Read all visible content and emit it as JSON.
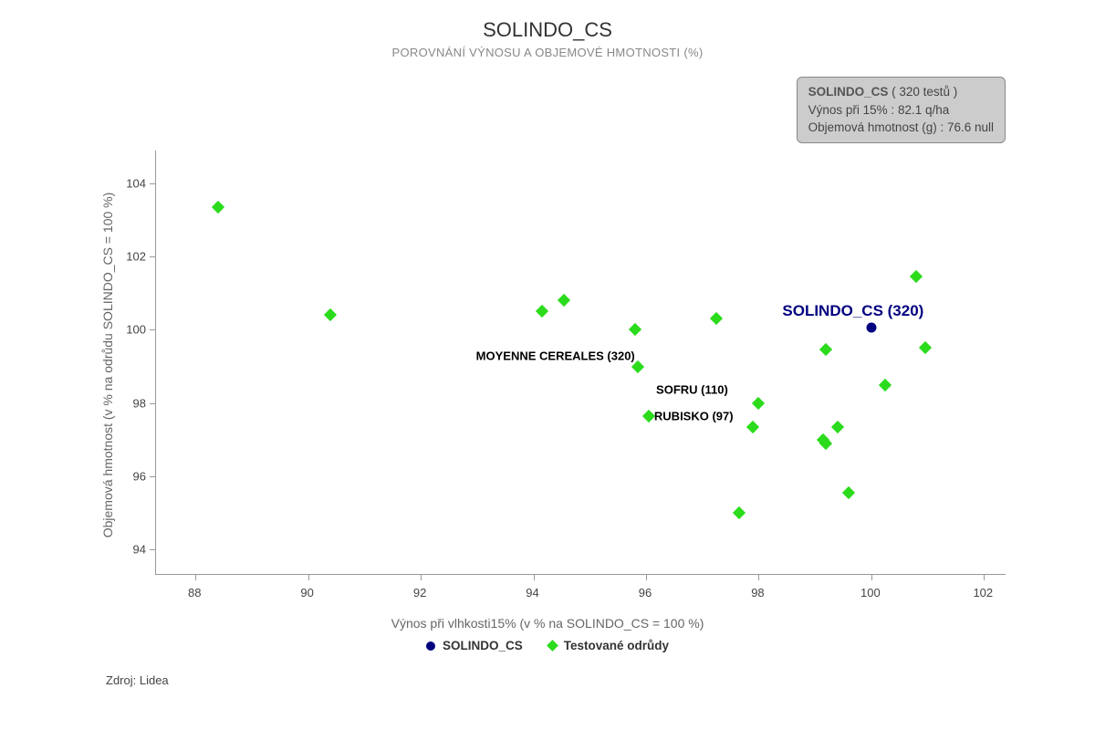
{
  "title": "SOLINDO_CS",
  "subtitle": "POROVNÁNÍ VÝNOSU A OBJEMOVÉ HMOTNOSTI (%)",
  "info_box": {
    "title_part": "SOLINDO_CS",
    "tests_part": " ( 320 testů )",
    "line2": "Výnos při 15% : 82.1 q/ha",
    "line3": "Objemová hmotnost (g) : 76.6 null"
  },
  "chart": {
    "type": "scatter",
    "background_color": "#ffffff",
    "axis_color": "#999999",
    "tick_label_color": "#444444",
    "xlabel": "Výnos při vlhkosti15% (v % na SOLINDO_CS = 100 %)",
    "ylabel": "Objemová hmotnost (v % na odrůdu SOLINDO_CS = 100 %)",
    "axis_label_color": "#666666",
    "axis_label_fontsize": 14,
    "tick_fontsize": 13,
    "xlim": [
      87.3,
      102.4
    ],
    "ylim": [
      93.3,
      104.9
    ],
    "xticks": [
      88,
      90,
      92,
      94,
      96,
      98,
      100,
      102
    ],
    "yticks": [
      94,
      96,
      98,
      100,
      102,
      104
    ],
    "series": {
      "tested": {
        "marker": "diamond",
        "color": "#2bdb1c",
        "size": 10,
        "points": [
          {
            "x": 88.4,
            "y": 103.35
          },
          {
            "x": 90.4,
            "y": 100.4
          },
          {
            "x": 94.15,
            "y": 100.5
          },
          {
            "x": 94.55,
            "y": 100.8
          },
          {
            "x": 95.8,
            "y": 100.0
          },
          {
            "x": 95.85,
            "y": 99.0,
            "label": "MOYENNE CEREALES (320)",
            "label_dx": -90,
            "label_dy": -12
          },
          {
            "x": 96.05,
            "y": 97.65
          },
          {
            "x": 97.25,
            "y": 100.3
          },
          {
            "x": 97.65,
            "y": 95.0
          },
          {
            "x": 97.9,
            "y": 97.35,
            "label": "RUBISKO (97)",
            "label_dx": -65,
            "label_dy": -12
          },
          {
            "x": 98.0,
            "y": 98.0,
            "label": "SOFRU (110)",
            "label_dx": -73,
            "label_dy": -15
          },
          {
            "x": 99.15,
            "y": 97.0
          },
          {
            "x": 99.2,
            "y": 96.9
          },
          {
            "x": 99.2,
            "y": 99.45
          },
          {
            "x": 99.4,
            "y": 97.35
          },
          {
            "x": 99.6,
            "y": 95.55
          },
          {
            "x": 100.25,
            "y": 98.5
          },
          {
            "x": 100.8,
            "y": 101.45
          },
          {
            "x": 100.95,
            "y": 99.5
          }
        ]
      },
      "main": {
        "marker": "circle",
        "color": "#000080",
        "size": 11,
        "points": [
          {
            "x": 100.0,
            "y": 100.05,
            "label": "SOLINDO_CS (320)",
            "label_dx": -20,
            "label_dy": -18,
            "label_color": "#000080",
            "label_fontsize": 17
          }
        ]
      }
    }
  },
  "legend": {
    "items": [
      {
        "marker": "circle",
        "color": "#000080",
        "label": "SOLINDO_CS"
      },
      {
        "marker": "diamond",
        "color": "#2bdb1c",
        "label": "Testované odrůdy"
      }
    ]
  },
  "source": "Zdroj: Lidea"
}
